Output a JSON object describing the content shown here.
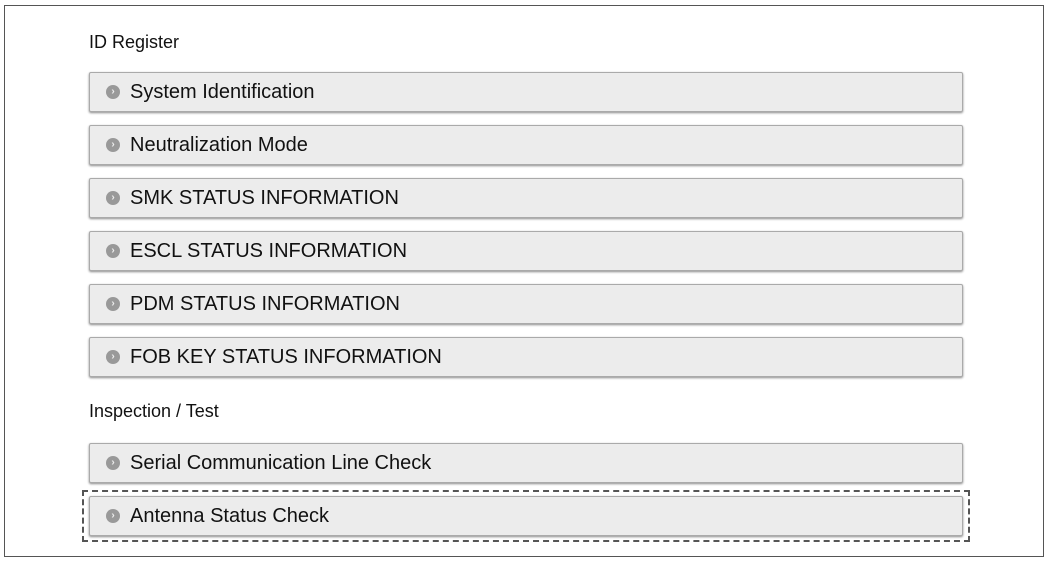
{
  "sections": [
    {
      "title": "ID Register",
      "items": [
        {
          "label": "System Identification",
          "icon": "arrow-right-circle-icon"
        },
        {
          "label": "Neutralization Mode",
          "icon": "arrow-right-circle-icon"
        },
        {
          "label": "SMK STATUS INFORMATION",
          "icon": "arrow-right-circle-icon"
        },
        {
          "label": "ESCL STATUS INFORMATION",
          "icon": "arrow-right-circle-icon"
        },
        {
          "label": "PDM STATUS INFORMATION",
          "icon": "arrow-right-circle-icon"
        },
        {
          "label": "FOB KEY STATUS INFORMATION",
          "icon": "arrow-right-circle-icon"
        }
      ]
    },
    {
      "title": "Inspection / Test",
      "items": [
        {
          "label": "Serial Communication Line Check",
          "icon": "arrow-right-circle-icon"
        },
        {
          "label": "Antenna Status Check",
          "icon": "arrow-right-circle-icon",
          "focused": true
        }
      ]
    }
  ]
}
